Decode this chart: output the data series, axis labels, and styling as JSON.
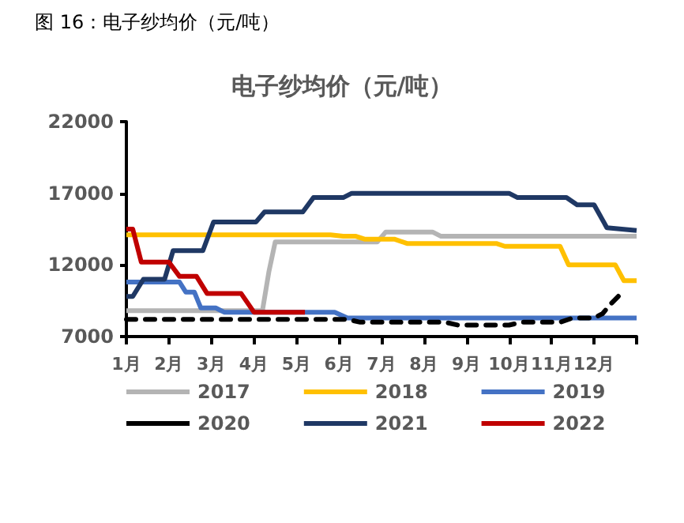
{
  "chart_data": {
    "type": "line",
    "title": "电子纱均价（元/吨）",
    "annotations": [
      "图 16：电子纱均价（元/吨）"
    ],
    "xlim": [
      1,
      13
    ],
    "xticks": [
      {
        "value": 1,
        "label": "1月"
      },
      {
        "value": 2,
        "label": "2月"
      },
      {
        "value": 3,
        "label": "3月"
      },
      {
        "value": 4,
        "label": "4月"
      },
      {
        "value": 5,
        "label": "5月"
      },
      {
        "value": 6,
        "label": "6月"
      },
      {
        "value": 7,
        "label": "7月"
      },
      {
        "value": 8,
        "label": "8月"
      },
      {
        "value": 9,
        "label": "9月"
      },
      {
        "value": 10,
        "label": "10月"
      },
      {
        "value": 11,
        "label": "11月"
      },
      {
        "value": 12,
        "label": "12月"
      },
      {
        "value": 13,
        "label": null
      }
    ],
    "ylim": [
      7000,
      22000
    ],
    "yticks": [
      7000,
      12000,
      17000,
      22000
    ],
    "grid": false,
    "legend": "bottom",
    "marker": "none",
    "series": [
      {
        "name": "2017",
        "color": "#b4b4b4",
        "x": [
          1,
          4.2,
          4.35,
          4.5,
          6.9,
          7.1,
          8.2,
          8.4,
          13
        ],
        "values": [
          8800,
          8800,
          11500,
          13600,
          13600,
          14300,
          14300,
          14000,
          14000
        ]
      },
      {
        "name": "2018",
        "color": "#ffc000",
        "x": [
          1,
          5.8,
          6.1,
          6.4,
          6.6,
          7.3,
          7.6,
          9.7,
          9.9,
          11.2,
          11.4,
          12.5,
          12.7,
          13
        ],
        "values": [
          14100,
          14100,
          14000,
          14000,
          13800,
          13800,
          13500,
          13500,
          13300,
          13300,
          12000,
          12000,
          10900,
          10900
        ]
      },
      {
        "name": "2019",
        "color": "#4472c4",
        "x": [
          1,
          2.25,
          2.4,
          2.6,
          2.75,
          3.1,
          3.3,
          5.9,
          6.2,
          13
        ],
        "values": [
          10800,
          10800,
          10100,
          10100,
          9000,
          9000,
          8700,
          8700,
          8300,
          8300
        ]
      },
      {
        "name": "2020",
        "color": "#000000",
        "line_style": "dashed",
        "x": [
          1,
          6.2,
          6.5,
          8.5,
          8.8,
          10.0,
          10.3,
          11.2,
          11.5,
          12.0,
          12.2,
          12.4,
          12.6
        ],
        "values": [
          8200,
          8200,
          8000,
          8000,
          7800,
          7800,
          8000,
          8000,
          8300,
          8300,
          8600,
          9300,
          9900
        ]
      },
      {
        "name": "2021",
        "color": "#1f3864",
        "x": [
          1,
          1.15,
          1.4,
          1.9,
          2.1,
          2.8,
          3.05,
          4.05,
          4.25,
          5.15,
          5.4,
          6.1,
          6.3,
          10.0,
          10.2,
          11.35,
          11.6,
          12.0,
          12.3,
          13
        ],
        "values": [
          9800,
          9800,
          11000,
          11000,
          13000,
          13000,
          15000,
          15000,
          15700,
          15700,
          16700,
          16700,
          17000,
          17000,
          16700,
          16700,
          16200,
          16200,
          14600,
          14400
        ]
      },
      {
        "name": "2022",
        "color": "#c00000",
        "x": [
          1,
          1.15,
          1.35,
          2.0,
          2.25,
          2.65,
          2.9,
          3.7,
          4.0,
          5.2
        ],
        "values": [
          14500,
          14500,
          12200,
          12200,
          11200,
          11200,
          10000,
          10000,
          8700,
          8700
        ]
      }
    ]
  }
}
